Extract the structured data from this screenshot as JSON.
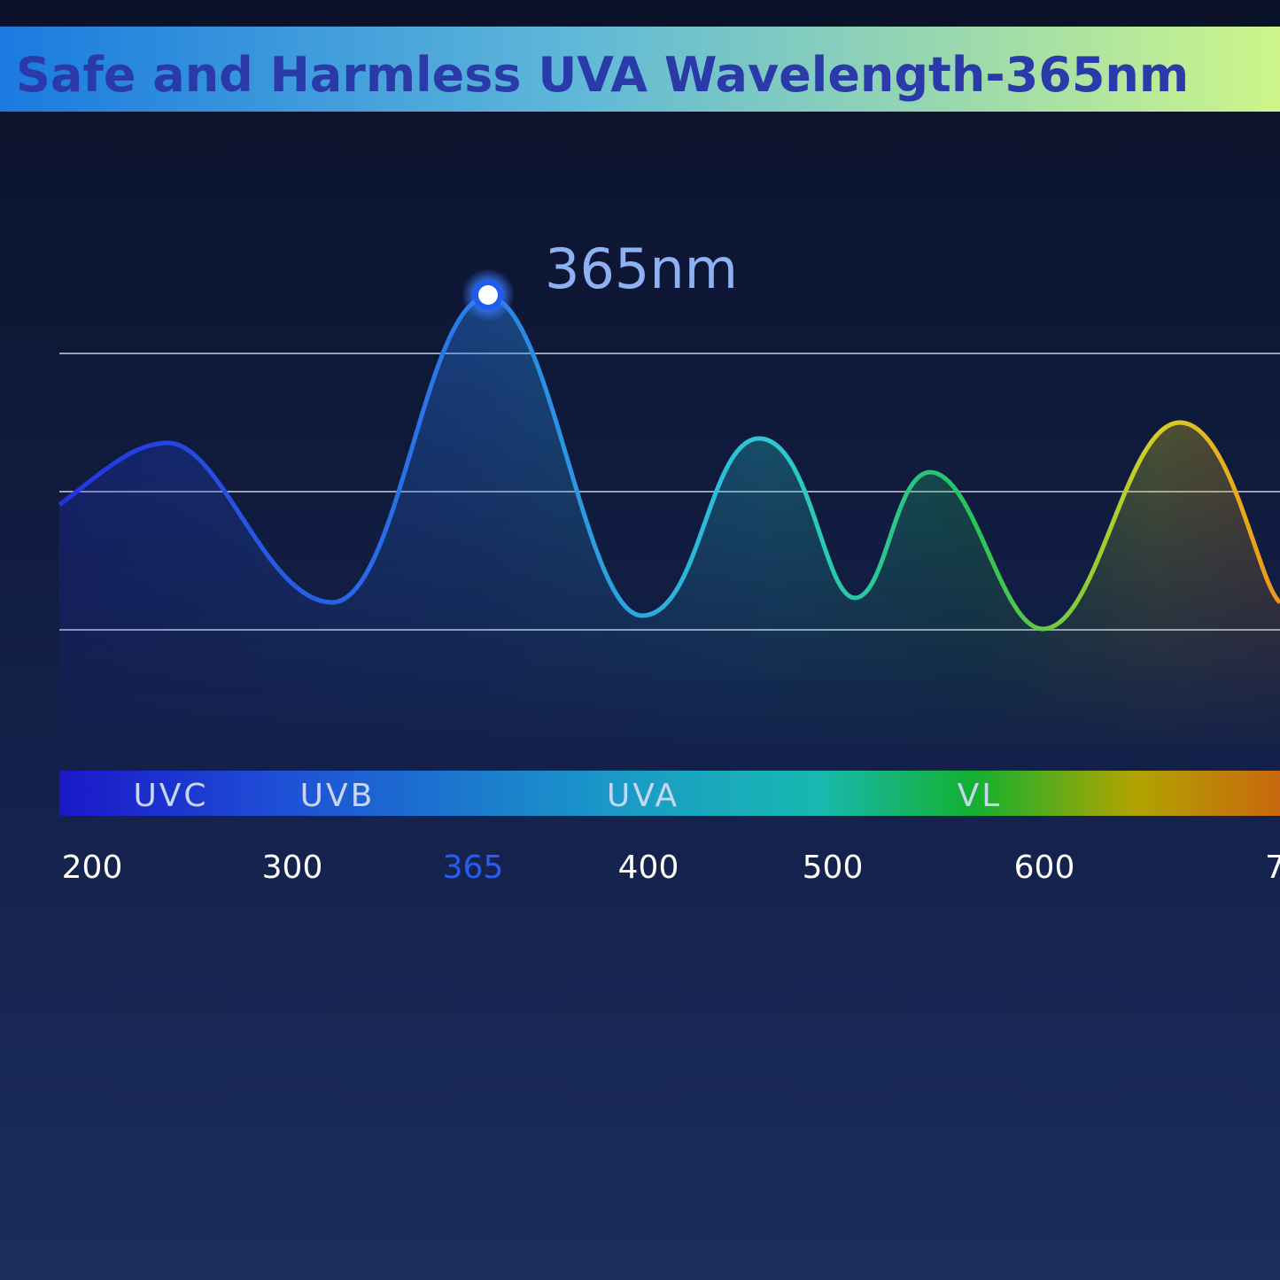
{
  "title": "Safe and Harmless UVA Wavelength-365nm",
  "peak_label": "365nm",
  "bands": [
    "UVC",
    "UVB",
    "UVA",
    "VL"
  ],
  "wavelengths": [
    "200",
    "300",
    "365",
    "400",
    "500",
    "600",
    "7"
  ]
}
